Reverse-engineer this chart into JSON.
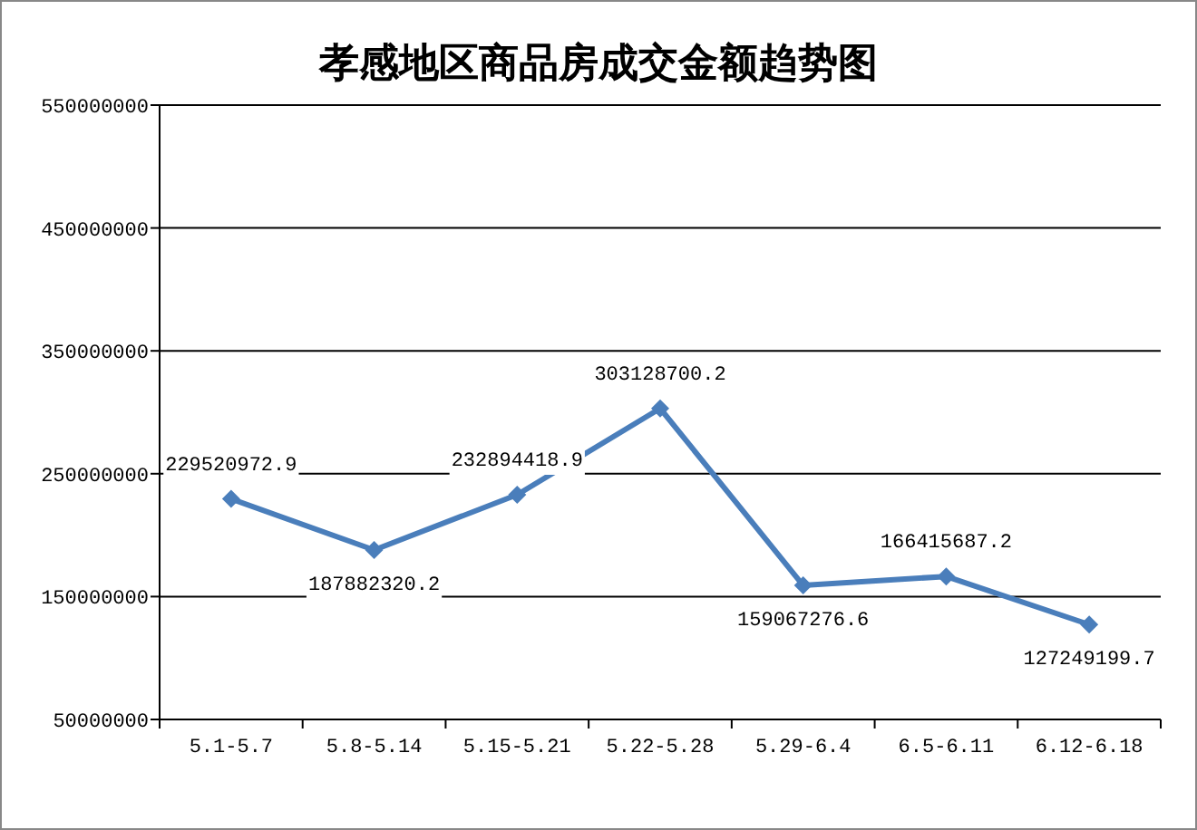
{
  "chart_data": {
    "type": "line",
    "title": "孝感地区商品房成交金额趋势图",
    "categories": [
      "5.1-5.7",
      "5.8-5.14",
      "5.15-5.21",
      "5.22-5.28",
      "5.29-6.4",
      "6.5-6.11",
      "6.12-6.18"
    ],
    "series": [
      {
        "color": "#4a7ebb",
        "values": [
          229520972.9,
          187882320.2,
          232894418.9,
          303128700.2,
          159067276.6,
          166415687.2,
          127249199.7
        ]
      }
    ],
    "ylim": [
      50000000,
      550000000
    ],
    "yticks": [
      50000000,
      150000000,
      250000000,
      350000000,
      450000000,
      550000000
    ],
    "grid": "y",
    "marker": "diamond",
    "line_style": "solid",
    "data_labels": true
  }
}
